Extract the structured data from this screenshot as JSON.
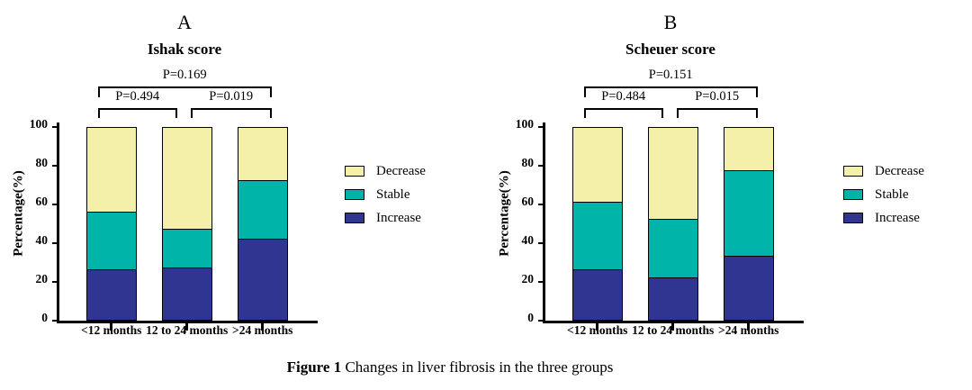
{
  "caption": {
    "bold": "Figure 1",
    "text": " Changes in liver fibrosis in the three groups"
  },
  "legend": {
    "items": [
      {
        "label": "Decrease",
        "color": "#F4EFA9"
      },
      {
        "label": "Stable",
        "color": "#00B4A9"
      },
      {
        "label": "Increase",
        "color": "#2F3590"
      }
    ]
  },
  "chart_data": [
    {
      "type": "bar",
      "stacked": true,
      "panel": "A",
      "title": "Ishak score",
      "xlabel": "",
      "ylabel": "Percentage(%)",
      "ylim": [
        0,
        100
      ],
      "yticks": [
        0,
        20,
        40,
        60,
        80,
        100
      ],
      "grid": false,
      "legend_position": "right",
      "categories": [
        "<12 months",
        "12 to 24 months",
        ">24 months"
      ],
      "series": [
        {
          "name": "Increase",
          "color": "#2F3590",
          "values": [
            26,
            27,
            42
          ]
        },
        {
          "name": "Stable",
          "color": "#00B4A9",
          "values": [
            30,
            20,
            30
          ]
        },
        {
          "name": "Decrease",
          "color": "#F4EFA9",
          "values": [
            44,
            53,
            28
          ]
        }
      ],
      "comparisons": [
        {
          "label": "P=0.169",
          "from": 0,
          "to": 2,
          "row": "upper"
        },
        {
          "label": "P=0.494",
          "from": 0,
          "to": 1,
          "row": "lower"
        },
        {
          "label": "P=0.019",
          "from": 1,
          "to": 2,
          "row": "lower"
        }
      ]
    },
    {
      "type": "bar",
      "stacked": true,
      "panel": "B",
      "title": "Scheuer score",
      "xlabel": "",
      "ylabel": "Percentage(%)",
      "ylim": [
        0,
        100
      ],
      "yticks": [
        0,
        20,
        40,
        60,
        80,
        100
      ],
      "grid": false,
      "legend_position": "right",
      "categories": [
        "<12 months",
        "12 to 24 months",
        ">24 months"
      ],
      "series": [
        {
          "name": "Increase",
          "color": "#2F3590",
          "values": [
            26,
            22,
            33
          ]
        },
        {
          "name": "Stable",
          "color": "#00B4A9",
          "values": [
            35,
            30,
            44
          ]
        },
        {
          "name": "Decrease",
          "color": "#F4EFA9",
          "values": [
            39,
            48,
            23
          ]
        }
      ],
      "comparisons": [
        {
          "label": "P=0.151",
          "from": 0,
          "to": 2,
          "row": "upper"
        },
        {
          "label": "P=0.484",
          "from": 0,
          "to": 1,
          "row": "lower"
        },
        {
          "label": "P=0.015",
          "from": 1,
          "to": 2,
          "row": "lower"
        }
      ]
    }
  ]
}
